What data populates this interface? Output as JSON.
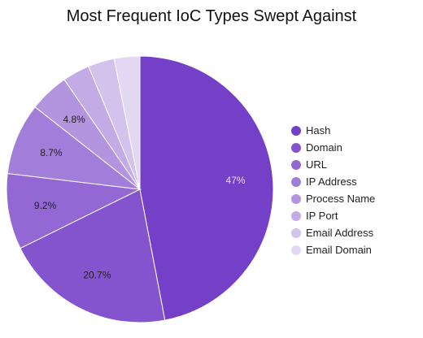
{
  "chart_data": {
    "type": "pie",
    "title": "Most Frequent IoC Types Swept Against",
    "legend_position": "right",
    "slices": [
      {
        "label": "Hash",
        "value": 47,
        "data_label": "47%",
        "color": "#7440c8"
      },
      {
        "label": "Domain",
        "value": 20.7,
        "data_label": "20.7%",
        "color": "#8454cf"
      },
      {
        "label": "URL",
        "value": 9.2,
        "data_label": "9.2%",
        "color": "#9368d4"
      },
      {
        "label": "IP Address",
        "value": 8.7,
        "data_label": "8.7%",
        "color": "#a07ed9"
      },
      {
        "label": "Process Name",
        "value": 4.8,
        "data_label": "4.8%",
        "color": "#b394df"
      },
      {
        "label": "IP Port",
        "value": 3.3,
        "data_label": "",
        "color": "#c3abe5"
      },
      {
        "label": "Email Address",
        "value": 3.2,
        "data_label": "",
        "color": "#d2c2ec"
      },
      {
        "label": "Email Domain",
        "value": 3.1,
        "data_label": "",
        "color": "#e2d8f3"
      }
    ]
  }
}
